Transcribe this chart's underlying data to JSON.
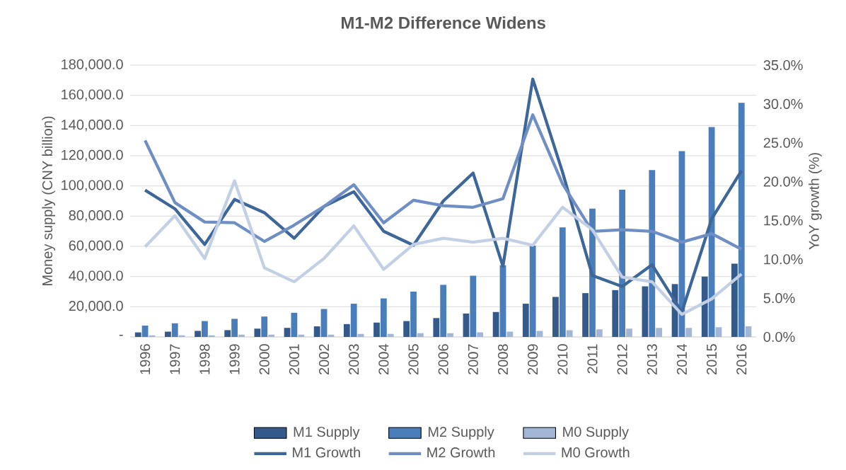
{
  "chart_data": {
    "type": "bar",
    "title": "M1-M2 Difference Widens",
    "ylabel": "Money supply (CNY billion)",
    "y2label": "YoY growth (%)",
    "categories": [
      "1996",
      "1997",
      "1998",
      "1999",
      "2000",
      "2001",
      "2002",
      "2003",
      "2004",
      "2005",
      "2006",
      "2007",
      "2008",
      "2009",
      "2010",
      "2011",
      "2012",
      "2013",
      "2014",
      "2015",
      "2016"
    ],
    "series": [
      {
        "name": "M1 Supply",
        "color": "#335a8a",
        "values": [
          3000,
          3500,
          4000,
          4500,
          5500,
          6000,
          7000,
          8500,
          9500,
          10500,
          12500,
          15500,
          16500,
          22000,
          26500,
          29000,
          31000,
          33500,
          35000,
          40000,
          48500
        ]
      },
      {
        "name": "M2 Supply",
        "color": "#4a7ebb",
        "values": [
          7500,
          9000,
          10500,
          12000,
          13500,
          16000,
          18500,
          22000,
          25500,
          30000,
          34500,
          40500,
          47500,
          60500,
          72500,
          85000,
          97500,
          110500,
          123000,
          139000,
          155000
        ]
      },
      {
        "name": "M0 Supply",
        "color": "#a3b6d6",
        "values": [
          1000,
          1000,
          1000,
          1500,
          1500,
          1500,
          1500,
          2000,
          2000,
          2500,
          2500,
          3000,
          3500,
          4000,
          4500,
          5000,
          5500,
          6000,
          6000,
          6500,
          7000
        ]
      },
      {
        "name": "M1 Growth",
        "type": "line",
        "axis": "y2",
        "color": "#3d6699",
        "values": [
          18.9,
          16.5,
          11.9,
          17.7,
          16.0,
          12.7,
          16.8,
          18.7,
          13.6,
          11.8,
          17.5,
          21.1,
          9.1,
          33.2,
          21.2,
          7.9,
          6.5,
          9.3,
          3.2,
          15.2,
          21.4
        ]
      },
      {
        "name": "M2 Growth",
        "type": "line",
        "axis": "y2",
        "color": "#6f8fc4",
        "values": [
          25.3,
          17.3,
          14.8,
          14.7,
          12.3,
          14.4,
          16.8,
          19.6,
          14.7,
          17.6,
          16.9,
          16.7,
          17.8,
          28.6,
          19.7,
          13.6,
          13.8,
          13.6,
          12.2,
          13.3,
          11.3
        ]
      },
      {
        "name": "M0 Growth",
        "type": "line",
        "axis": "y2",
        "color": "#c3cfe4",
        "values": [
          11.6,
          15.6,
          10.1,
          20.1,
          8.9,
          7.1,
          10.1,
          14.3,
          8.7,
          11.9,
          12.7,
          12.2,
          12.7,
          11.8,
          16.7,
          13.8,
          7.7,
          7.1,
          2.9,
          4.9,
          8.1
        ]
      }
    ],
    "ylim": [
      0,
      180000
    ],
    "yticks": [
      {
        "value": 0,
        "label": "-"
      },
      {
        "value": 20000,
        "label": "20,000.0"
      },
      {
        "value": 40000,
        "label": "40,000.0"
      },
      {
        "value": 60000,
        "label": "60,000.0"
      },
      {
        "value": 80000,
        "label": "80,000.0"
      },
      {
        "value": 100000,
        "label": "100,000.0"
      },
      {
        "value": 120000,
        "label": "120,000.0"
      },
      {
        "value": 140000,
        "label": "140,000.0"
      },
      {
        "value": 160000,
        "label": "160,000.0"
      },
      {
        "value": 180000,
        "label": "180,000.0"
      }
    ],
    "y2lim": [
      0,
      35
    ],
    "y2ticks": [
      {
        "value": 0,
        "label": "0.0%"
      },
      {
        "value": 5,
        "label": "5.0%"
      },
      {
        "value": 10,
        "label": "10.0%"
      },
      {
        "value": 15,
        "label": "15.0%"
      },
      {
        "value": 20,
        "label": "20.0%"
      },
      {
        "value": 25,
        "label": "25.0%"
      },
      {
        "value": 30,
        "label": "30.0%"
      },
      {
        "value": 35,
        "label": "35.0%"
      }
    ],
    "grid": "y",
    "legend": "bottom",
    "marker": "none"
  }
}
